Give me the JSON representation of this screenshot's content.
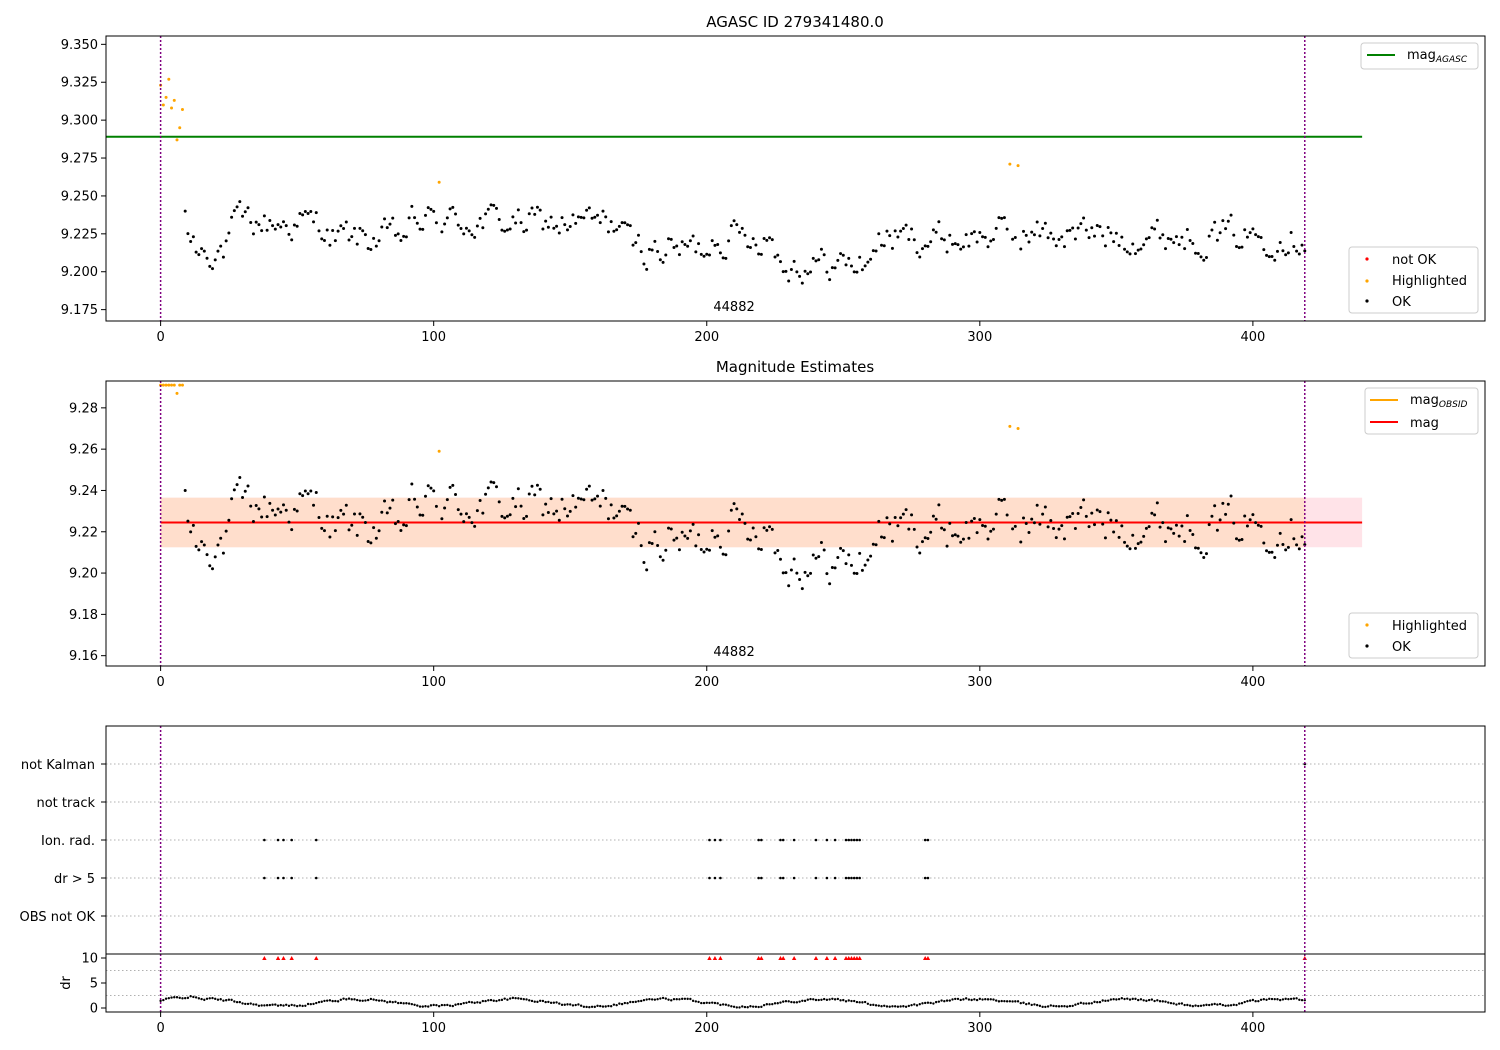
{
  "colors": {
    "ok": "#000000",
    "highlighted": "#ffa500",
    "not_ok": "#ff0000",
    "agasc_line": "#008000",
    "obsid_line": "#ffa500",
    "mag_line": "#ff0000",
    "band_fill": "#ffc0cb",
    "band_fill2": "#ffdab9",
    "vline": "#800080"
  },
  "chart_data": [
    {
      "id": "panel1",
      "type": "scatter",
      "title": "AGASC ID 279341480.0",
      "xlim": [
        -20,
        485
      ],
      "ylim": [
        9.1675,
        9.3555
      ],
      "xticks": [
        0,
        100,
        200,
        300,
        400
      ],
      "xtick_labels": [
        "0",
        "100",
        "200",
        "300",
        "400"
      ],
      "yticks": [
        9.175,
        9.2,
        9.225,
        9.25,
        9.275,
        9.3,
        9.325,
        9.35
      ],
      "ytick_labels": [
        "9.175",
        "9.200",
        "9.225",
        "9.250",
        "9.275",
        "9.300",
        "9.325",
        "9.350"
      ],
      "hline": {
        "y": 9.289,
        "x": [
          -20,
          440
        ]
      },
      "vlines": [
        0,
        419
      ],
      "annotation": {
        "x": 210,
        "y": 9.172,
        "text": "44882"
      },
      "legend_upper": {
        "label": "mag",
        "sub": "AGASC"
      },
      "legend_lower": [
        "not OK",
        "Highlighted",
        "OK"
      ],
      "highlighted_points": [
        [
          0,
          9.323
        ],
        [
          1,
          9.31
        ],
        [
          2,
          9.315
        ],
        [
          3,
          9.327
        ],
        [
          4,
          9.308
        ],
        [
          5,
          9.313
        ],
        [
          6,
          9.287
        ],
        [
          7,
          9.295
        ],
        [
          8,
          9.307
        ],
        [
          102,
          9.259
        ],
        [
          311,
          9.271
        ],
        [
          314,
          9.27
        ]
      ]
    },
    {
      "id": "panel2",
      "type": "scatter",
      "title": "Magnitude Estimates",
      "xlim": [
        -20,
        485
      ],
      "ylim": [
        9.155,
        9.293
      ],
      "xticks": [
        0,
        100,
        200,
        300,
        400
      ],
      "xtick_labels": [
        "0",
        "100",
        "200",
        "300",
        "400"
      ],
      "yticks": [
        9.16,
        9.18,
        9.2,
        9.22,
        9.24,
        9.26,
        9.28
      ],
      "ytick_labels": [
        "9.16",
        "9.18",
        "9.20",
        "9.22",
        "9.24",
        "9.26",
        "9.28"
      ],
      "hline": {
        "y": 9.2245,
        "x": [
          0,
          440
        ]
      },
      "band": {
        "y0": 9.2125,
        "y1": 9.2365,
        "x": [
          0,
          440
        ]
      },
      "band2": {
        "y0": 9.2125,
        "y1": 9.2365,
        "x": [
          0,
          419
        ]
      },
      "vlines": [
        0,
        419
      ],
      "annotation": {
        "x": 210,
        "y": 9.158,
        "text": "44882"
      },
      "legend_upper": [
        {
          "label": "mag",
          "sub": "OBSID"
        },
        {
          "label": "mag",
          "sub": ""
        }
      ],
      "legend_lower": [
        "Highlighted",
        "OK"
      ],
      "highlighted_points": [
        [
          0,
          9.291
        ],
        [
          1,
          9.291
        ],
        [
          2,
          9.291
        ],
        [
          3,
          9.291
        ],
        [
          4,
          9.291
        ],
        [
          5,
          9.291
        ],
        [
          6,
          9.287
        ],
        [
          7,
          9.291
        ],
        [
          8,
          9.291
        ],
        [
          102,
          9.259
        ],
        [
          311,
          9.271
        ],
        [
          314,
          9.27
        ]
      ]
    },
    {
      "id": "panel3",
      "type": "scatter",
      "xlim": [
        -20,
        485
      ],
      "categories": [
        "not Kalman",
        "not track",
        "Ion. rad.",
        "dr > 5",
        "OBS not OK"
      ],
      "flag_x": [
        38,
        43,
        45,
        48,
        57,
        201,
        203,
        205,
        219,
        220,
        227,
        228,
        232,
        240,
        244,
        247,
        251,
        252,
        253,
        254,
        255,
        256,
        280,
        281
      ],
      "not_kalman_x": [
        419
      ],
      "vlines": [
        0,
        419
      ]
    },
    {
      "id": "panel4",
      "type": "scatter",
      "xlim": [
        -20,
        485
      ],
      "ylim": [
        -0.8,
        10.8
      ],
      "ylabel": "dr",
      "xticks": [
        0,
        100,
        200,
        300,
        400
      ],
      "xtick_labels": [
        "0",
        "100",
        "200",
        "300",
        "400"
      ],
      "yticks": [
        0,
        5,
        10
      ],
      "ytick_labels": [
        "0",
        "5",
        "10"
      ],
      "threshold_x": [
        38,
        43,
        45,
        48,
        57,
        201,
        203,
        205,
        219,
        220,
        227,
        228,
        232,
        240,
        244,
        247,
        251,
        252,
        253,
        254,
        255,
        256,
        280,
        281,
        419
      ],
      "vlines": [
        0,
        419
      ]
    }
  ]
}
